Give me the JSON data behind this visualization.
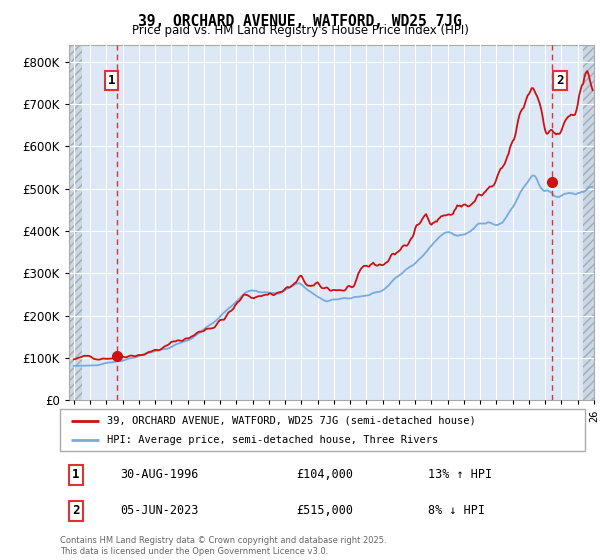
{
  "title_line1": "39, ORCHARD AVENUE, WATFORD, WD25 7JG",
  "title_line2": "Price paid vs. HM Land Registry's House Price Index (HPI)",
  "xlim_start": 1993.7,
  "xlim_end": 2026.0,
  "ylim_bottom": 0,
  "ylim_top": 840000,
  "hpi_color": "#7aaadd",
  "price_color": "#cc1111",
  "marker_color": "#cc1111",
  "dashed_color": "#dd3333",
  "transaction1_year": 1996.66,
  "transaction1_price": 104000,
  "transaction1_label": "1",
  "transaction2_year": 2023.42,
  "transaction2_price": 515000,
  "transaction2_label": "2",
  "legend_line1": "39, ORCHARD AVENUE, WATFORD, WD25 7JG (semi-detached house)",
  "legend_line2": "HPI: Average price, semi-detached house, Three Rivers",
  "table_row1_num": "1",
  "table_row1_date": "30-AUG-1996",
  "table_row1_price": "£104,000",
  "table_row1_hpi": "13% ↑ HPI",
  "table_row2_num": "2",
  "table_row2_date": "05-JUN-2023",
  "table_row2_price": "£515,000",
  "table_row2_hpi": "8% ↓ HPI",
  "footnote": "Contains HM Land Registry data © Crown copyright and database right 2025.\nThis data is licensed under the Open Government Licence v3.0.",
  "bg_color": "#ffffff",
  "plot_bg_color": "#dce8f5",
  "grid_color": "#ffffff",
  "hatch_facecolor": "#c8d8e8",
  "hatch_edgecolor": "#aaaaaa"
}
